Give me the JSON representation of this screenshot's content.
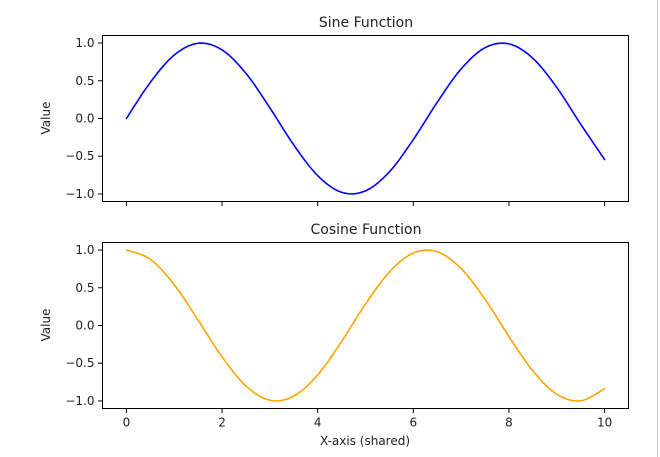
{
  "chart_data": [
    {
      "type": "line",
      "title": "Sine Function",
      "xlabel": "",
      "ylabel": "Value",
      "xlim": [
        -0.5,
        10.5
      ],
      "ylim": [
        -1.1,
        1.1
      ],
      "x_ticks": [
        0,
        2,
        4,
        6,
        8,
        10
      ],
      "x_tick_labels": [],
      "y_ticks": [
        1.0,
        0.5,
        0.0,
        -0.5,
        -1.0
      ],
      "y_tick_labels": [
        "1.0",
        "0.5",
        "0.0",
        "−0.5",
        "−1.0"
      ],
      "grid": false,
      "series": [
        {
          "color": "#0000ff",
          "x": [
            0,
            0.5,
            1,
            1.5,
            2,
            2.5,
            3,
            3.5,
            4,
            4.5,
            5,
            5.5,
            6,
            6.5,
            7,
            7.5,
            8,
            8.5,
            9,
            9.5,
            10
          ],
          "y": [
            0.0,
            0.479,
            0.841,
            0.997,
            0.909,
            0.598,
            0.141,
            -0.351,
            -0.757,
            -0.978,
            -0.959,
            -0.706,
            -0.279,
            0.215,
            0.657,
            0.938,
            0.989,
            0.798,
            0.412,
            -0.075,
            -0.544
          ]
        }
      ]
    },
    {
      "type": "line",
      "title": "Cosine Function",
      "xlabel": "X-axis (shared)",
      "ylabel": "Value",
      "xlim": [
        -0.5,
        10.5
      ],
      "ylim": [
        -1.1,
        1.1
      ],
      "x_ticks": [
        0,
        2,
        4,
        6,
        8,
        10
      ],
      "x_tick_labels": [
        "0",
        "2",
        "4",
        "6",
        "8",
        "10"
      ],
      "y_ticks": [
        1.0,
        0.5,
        0.0,
        -0.5,
        -1.0
      ],
      "y_tick_labels": [
        "1.0",
        "0.5",
        "0.0",
        "−0.5",
        "−1.0"
      ],
      "grid": false,
      "series": [
        {
          "color": "#ffa500",
          "x": [
            0,
            0.5,
            1,
            1.5,
            2,
            2.5,
            3,
            3.5,
            4,
            4.5,
            5,
            5.5,
            6,
            6.5,
            7,
            7.5,
            8,
            8.5,
            9,
            9.5,
            10
          ],
          "y": [
            1.0,
            0.878,
            0.54,
            0.071,
            -0.416,
            -0.801,
            -0.99,
            -0.936,
            -0.654,
            -0.211,
            0.284,
            0.709,
            0.96,
            0.977,
            0.754,
            0.347,
            -0.146,
            -0.602,
            -0.911,
            -0.997,
            -0.839
          ]
        }
      ]
    }
  ]
}
